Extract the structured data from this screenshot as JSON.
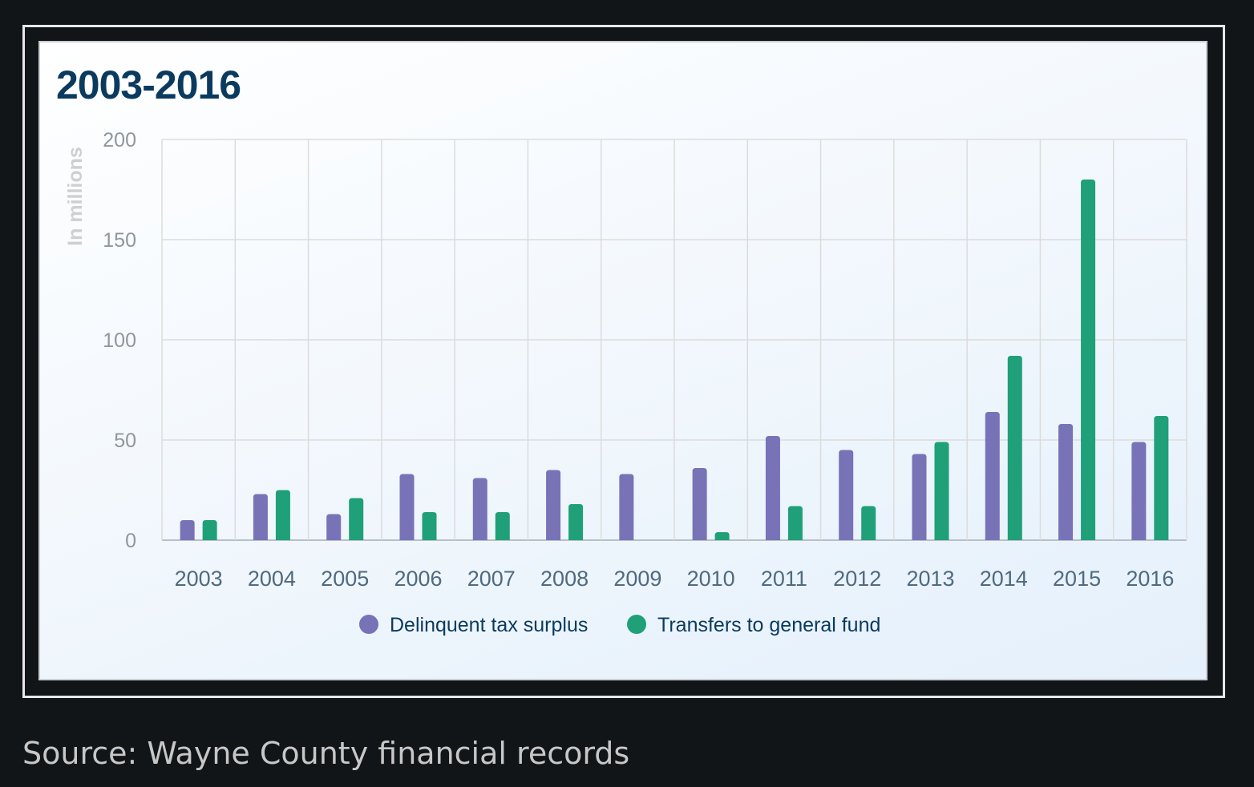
{
  "chart_data": {
    "type": "bar",
    "title": "2003-2016",
    "xlabel": "",
    "ylabel": "In millions",
    "ylim": [
      0,
      200
    ],
    "yticks": [
      0,
      50,
      100,
      150,
      200
    ],
    "grid": true,
    "legend_position": "bottom-center",
    "categories": [
      "2003",
      "2004",
      "2005",
      "2006",
      "2007",
      "2008",
      "2009",
      "2010",
      "2011",
      "2012",
      "2013",
      "2014",
      "2015",
      "2016"
    ],
    "series": [
      {
        "name": "Delinquent tax surplus",
        "color": "#7872b7",
        "values": [
          10,
          23,
          13,
          33,
          31,
          35,
          33,
          36,
          52,
          45,
          43,
          64,
          58,
          49
        ]
      },
      {
        "name": "Transfers to general fund",
        "color": "#1fa078",
        "values": [
          10,
          25,
          21,
          14,
          14,
          18,
          0,
          4,
          17,
          17,
          49,
          92,
          180,
          62
        ]
      }
    ]
  },
  "source": "Source: Wayne County financial records",
  "colors": {
    "title": "#0b3a5f",
    "axis_label": "#cfcfcf",
    "tick": "#8f969c",
    "category_label": "#4f6a80",
    "legend_text": "#0b3a5f",
    "grid": "#dcdcdc"
  }
}
